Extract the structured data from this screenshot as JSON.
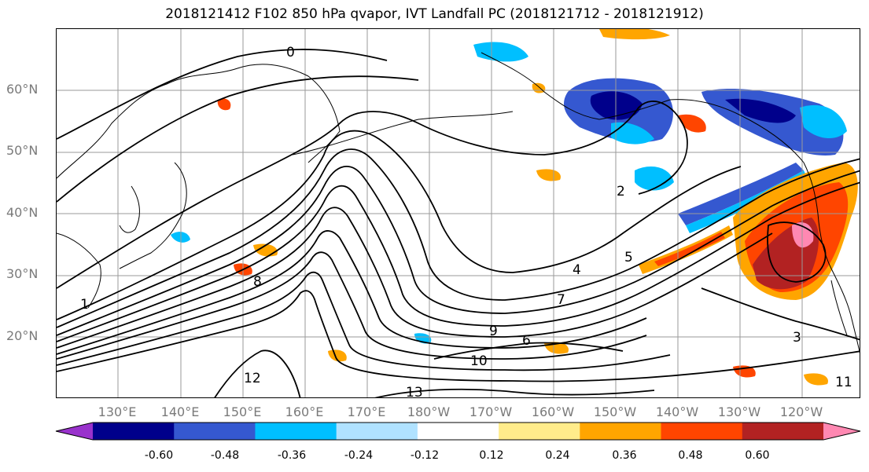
{
  "title": "2018121412 F102 850 hPa qvapor, IVT Landfall PC (2018121712 - 2018121912)",
  "lat_labels": [
    "60°N",
    "50°N",
    "40°N",
    "30°N",
    "20°N"
  ],
  "lon_labels": [
    "130°E",
    "140°E",
    "150°E",
    "160°E",
    "170°E",
    "180°W",
    "170°W",
    "160°W",
    "150°W",
    "140°W",
    "130°W",
    "120°W"
  ],
  "contour_labels": [
    "0",
    "1",
    "2",
    "3",
    "4",
    "5",
    "6",
    "7",
    "8",
    "9",
    "10",
    "11",
    "12",
    "13"
  ],
  "colorbar": {
    "ticks": [
      "-0.60",
      "-0.48",
      "-0.36",
      "-0.24",
      "-0.12",
      "0.12",
      "0.24",
      "0.36",
      "0.48",
      "0.60"
    ],
    "colors": [
      "#9932cc",
      "#00008b",
      "#3558d0",
      "#00bfff",
      "#b0e2ff",
      "#ffffff",
      "#ffec8b",
      "#ffa500",
      "#ff4500",
      "#b22222",
      "#ff88b2"
    ]
  }
}
